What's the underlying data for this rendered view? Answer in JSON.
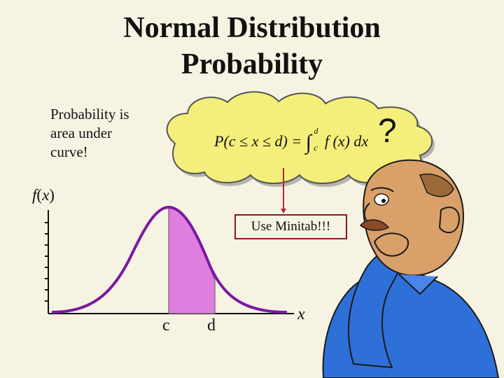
{
  "title": {
    "line1": "Normal Distribution",
    "line2": "Probability"
  },
  "side_text": {
    "line1": "Probability is",
    "line2": "area under",
    "line3": "curve!"
  },
  "y_axis_label": {
    "f": "f",
    "open": "(",
    "x": "x",
    "close": ")"
  },
  "x_axis_label": "x",
  "ticks": {
    "c": "c",
    "d": "d"
  },
  "formula": {
    "lhs": "P(c ≤ x ≤ d) =",
    "integral": "∫",
    "upper": "d",
    "lower": "c",
    "integrand": "f (x) dx"
  },
  "question_mark": "?",
  "callout": "Use Minitab!!!",
  "colors": {
    "curve": "#7a1aa0",
    "shaded_area": "#e07ee0",
    "cloud_fill": "#f4ef7a",
    "callout_border": "#8a1820",
    "connector": "#b0283a",
    "shirt": "#2f6fd8",
    "skin": "#d9a06a"
  },
  "icons": {
    "thinker": "thinking-man-illustration",
    "cloud": "thought-cloud"
  }
}
